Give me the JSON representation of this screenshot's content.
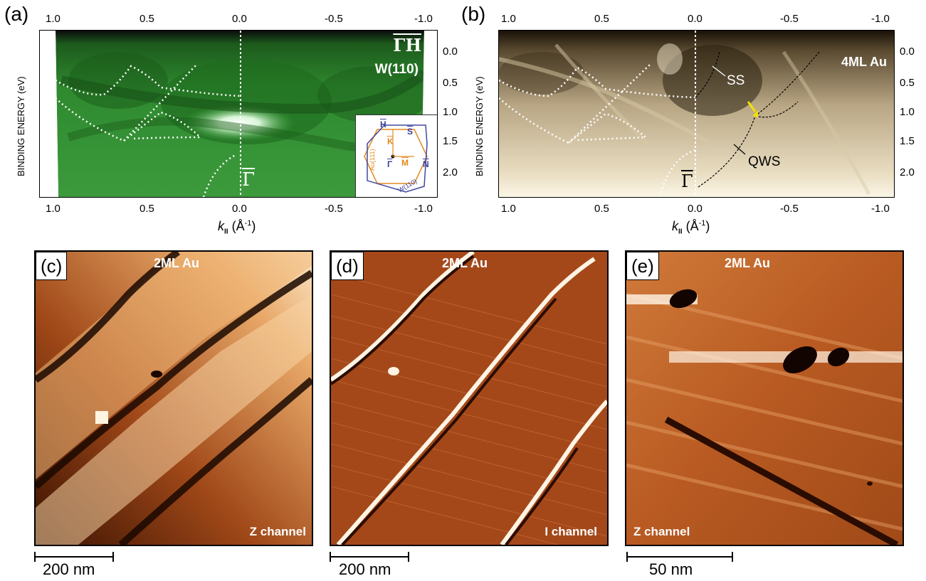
{
  "panels": {
    "a": {
      "tag": "(a)",
      "label_top": "ΓH",
      "label_material": "W(110)",
      "gamma_label": "Γ",
      "top_ticks": [
        "1.0",
        "0.5",
        "0.0",
        "-0.5",
        "-1.0"
      ],
      "bottom_ticks": [
        "1.0",
        "0.5",
        "0.0",
        "-0.5",
        "-1.0"
      ],
      "right_ticks": [
        "0.0",
        "0.5",
        "1.0",
        "1.5",
        "2.0"
      ],
      "ylabel": "BINDING ENERGY (eV)",
      "xlabel": "k",
      "xlabel_sub": "II",
      "xlabel_unit": "(Å",
      "xlabel_exp": "-1",
      "xlabel_close": ")",
      "inset": {
        "H": "H",
        "S": "S",
        "K": "K",
        "N": "N",
        "M": "M",
        "G": "Γ",
        "au": "Au(111)",
        "w": "W(110)"
      },
      "colors": {
        "bg": "#2f8a2f",
        "hot": "#ffffff",
        "dark": "#0f3a0f"
      }
    },
    "b": {
      "tag": "(b)",
      "label_material": "4ML Au",
      "label_ss": "SS",
      "label_qws": "QWS",
      "gamma_label": "Γ",
      "top_ticks": [
        "1.0",
        "0.5",
        "0.0",
        "-0.5",
        "-1.0"
      ],
      "bottom_ticks": [
        "1.0",
        "0.5",
        "0.0",
        "-0.5",
        "-1.0"
      ],
      "right_ticks": [
        "0.0",
        "0.5",
        "1.0",
        "1.5",
        "2.0"
      ],
      "ylabel": "BINDING ENERGY (eV)",
      "xlabel": "k",
      "xlabel_sub": "II",
      "xlabel_unit": "(Å",
      "xlabel_exp": "-1",
      "xlabel_close": ")",
      "arrow_color": "#f2e200"
    },
    "c": {
      "tag": "(c)",
      "title": "2ML Au",
      "channel": "Z channel",
      "scale": "200 nm"
    },
    "d": {
      "tag": "(d)",
      "title": "2ML Au",
      "channel": "I channel",
      "scale": "200 nm"
    },
    "e": {
      "tag": "(e)",
      "title": "2ML Au",
      "channel": "Z channel",
      "scale": "50 nm"
    }
  }
}
